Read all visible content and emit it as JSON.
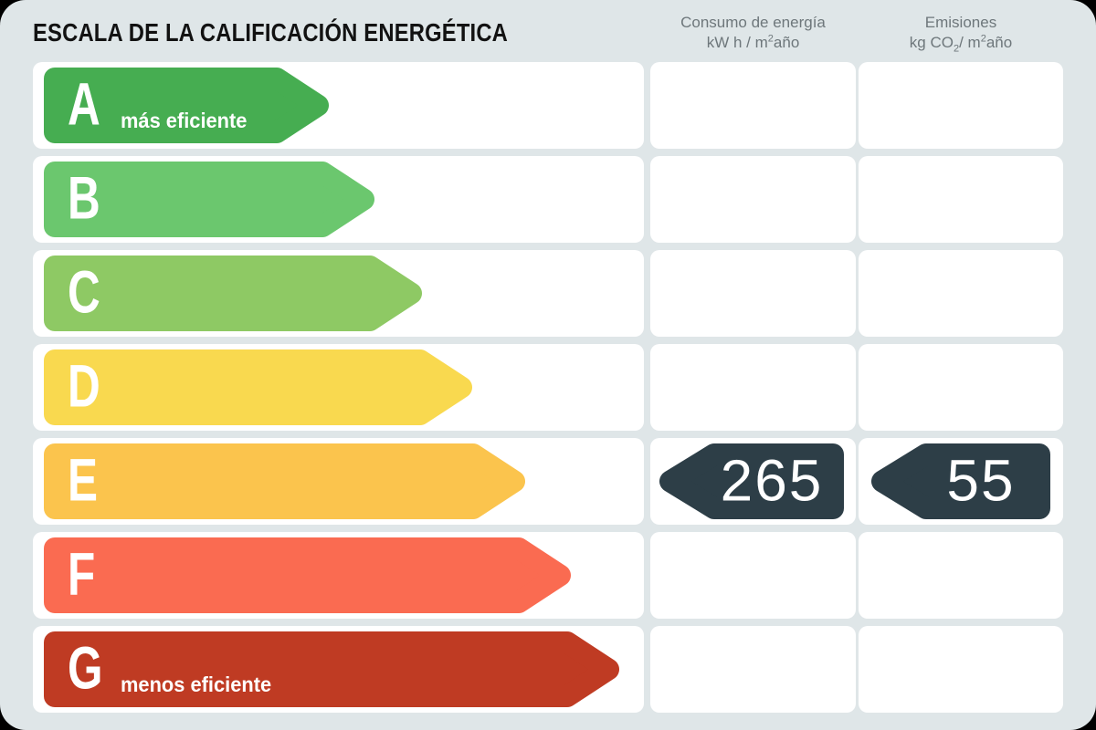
{
  "title": "ESCALA DE LA CALIFICACIÓN ENERGÉTICA",
  "consumption_header": {
    "title": "Consumo de energía",
    "unit_pre": "kW h / m",
    "unit_sup": "2",
    "unit_post": "año"
  },
  "emissions_header": {
    "title": "Emisiones",
    "unit_pre": "kg CO",
    "unit_sub": "2",
    "unit_mid": "/ m",
    "unit_sup": "2",
    "unit_post": "año"
  },
  "scale": [
    {
      "letter": "A",
      "label": "más eficiente",
      "color": "#46ad51",
      "arrow_width": 312
    },
    {
      "letter": "B",
      "label": "",
      "color": "#6bc76e",
      "arrow_width": 362
    },
    {
      "letter": "C",
      "label": "",
      "color": "#8ec964",
      "arrow_width": 414
    },
    {
      "letter": "D",
      "label": "",
      "color": "#f9d94f",
      "arrow_width": 469
    },
    {
      "letter": "E",
      "label": "",
      "color": "#fbc44d",
      "arrow_width": 527
    },
    {
      "letter": "F",
      "label": "",
      "color": "#fa6b51",
      "arrow_width": 577
    },
    {
      "letter": "G",
      "label": "menos eficiente",
      "color": "#bf3b23",
      "arrow_width": 630
    }
  ],
  "result": {
    "rating_letter": "E",
    "consumption_value": "265",
    "emissions_value": "55",
    "badge_color": "#2d3e47",
    "consumption_badge_width": 202,
    "emissions_badge_width": 196
  },
  "colors": {
    "background": "#dfe6e8",
    "card": "#ffffff",
    "header_text": "#6e777b",
    "title_text": "#121212"
  },
  "chart_data": {
    "type": "bar",
    "title": "ESCALA DE LA CALIFICACIÓN ENERGÉTICA",
    "categories": [
      "A",
      "B",
      "C",
      "D",
      "E",
      "F",
      "G"
    ],
    "values": [
      312,
      362,
      414,
      469,
      527,
      577,
      630
    ],
    "series_note": "arrow lengths are ordinal rank indicators, not measured data",
    "annotations": [
      "A = más eficiente",
      "G = menos eficiente"
    ],
    "rating": "E",
    "consumption_kWh_m2_year": 265,
    "emissions_kgCO2_m2_year": 55,
    "column_labels": [
      "Consumo de energía kW h / m²año",
      "Emisiones kg CO₂/ m²año"
    ]
  }
}
